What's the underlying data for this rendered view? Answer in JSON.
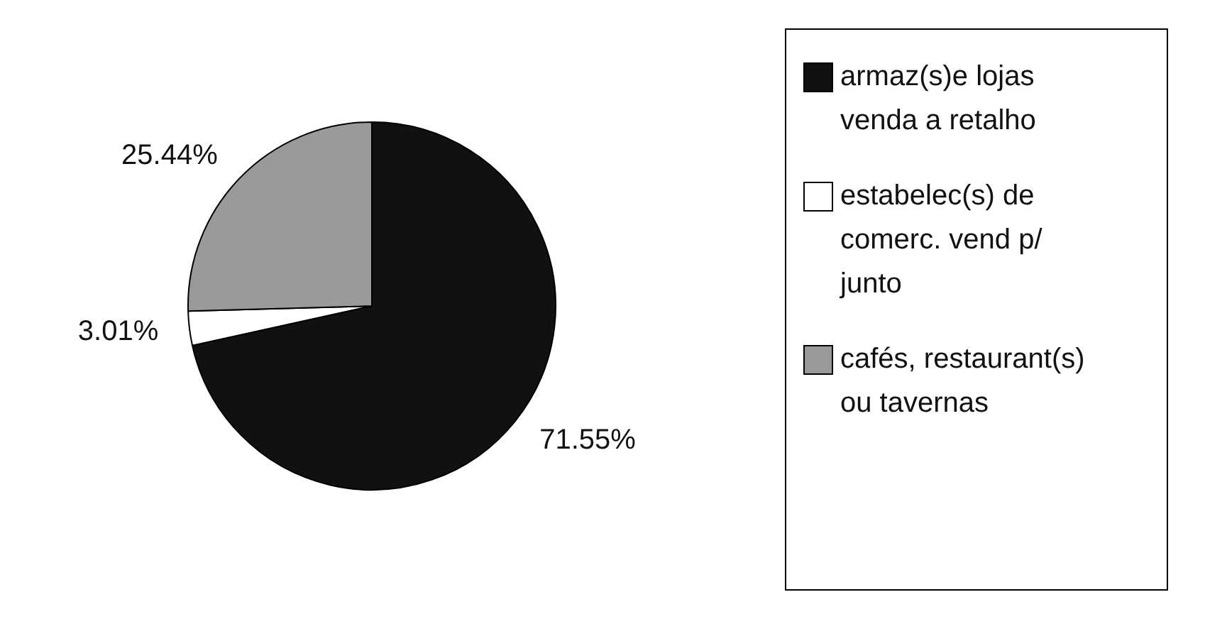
{
  "chart_data": {
    "type": "pie",
    "categories": [
      "armaz(s)e lojas venda a retalho",
      "estabelec(s) de comerc. vend p/ junto",
      "cafés, restaurant(s) ou tavernas"
    ],
    "values": [
      71.55,
      3.01,
      25.44
    ],
    "colors": [
      "#111111",
      "#ffffff",
      "#9a9a9a"
    ],
    "value_labels": [
      "71.55%",
      "3.01%",
      "25.44%"
    ],
    "legend": "right"
  }
}
